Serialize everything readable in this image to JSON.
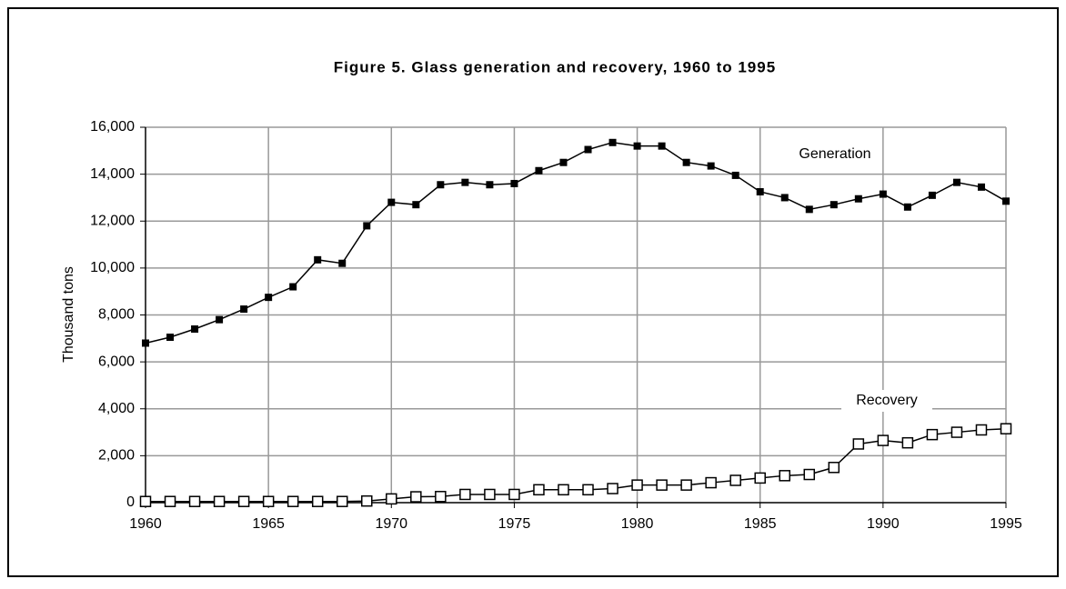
{
  "chart_data": {
    "type": "line",
    "title": "Figure 5. Glass generation and recovery, 1960 to 1995",
    "ylabel": "Thousand tons",
    "x": [
      1960,
      1961,
      1962,
      1963,
      1964,
      1965,
      1966,
      1967,
      1968,
      1969,
      1970,
      1971,
      1972,
      1973,
      1974,
      1975,
      1976,
      1977,
      1978,
      1979,
      1980,
      1981,
      1982,
      1983,
      1984,
      1985,
      1986,
      1987,
      1988,
      1989,
      1990,
      1991,
      1992,
      1993,
      1994,
      1995
    ],
    "series": [
      {
        "name": "Generation",
        "color": "#000000",
        "marker": "filled-square",
        "values": [
          6800,
          7050,
          7400,
          7800,
          8250,
          8750,
          9200,
          10350,
          10200,
          11800,
          12800,
          12700,
          13550,
          13650,
          13550,
          13600,
          14150,
          14500,
          15050,
          15350,
          15200,
          15200,
          14500,
          14350,
          13950,
          13250,
          13000,
          12500,
          12700,
          12950,
          13150,
          12600,
          13100,
          13650,
          13450,
          12850
        ]
      },
      {
        "name": "Recovery",
        "color": "#000000",
        "marker": "open-square",
        "values": [
          50,
          50,
          50,
          50,
          50,
          50,
          50,
          50,
          50,
          70,
          160,
          250,
          260,
          350,
          350,
          350,
          550,
          550,
          550,
          600,
          750,
          750,
          750,
          850,
          950,
          1050,
          1150,
          1200,
          1500,
          2500,
          2650,
          2550,
          2900,
          3000,
          3100,
          3150
        ]
      }
    ],
    "xlim": [
      1960,
      1995
    ],
    "xticks": [
      1960,
      1965,
      1970,
      1975,
      1980,
      1985,
      1990,
      1995
    ],
    "ylim": [
      0,
      16000
    ],
    "yticks": [
      0,
      {
        "value": 2000,
        "label": "2,000"
      },
      {
        "value": 4000,
        "label": "4,000"
      },
      {
        "value": 6000,
        "label": "6,000"
      },
      {
        "value": 8000,
        "label": "8,000"
      },
      {
        "value": 10000,
        "label": "10,000"
      },
      {
        "value": 12000,
        "label": "12,000"
      },
      {
        "value": 14000,
        "label": "14,000"
      },
      {
        "value": 16000,
        "label": "16,000"
      }
    ],
    "grid": true,
    "annotations": [
      "Generation",
      "Recovery"
    ]
  }
}
